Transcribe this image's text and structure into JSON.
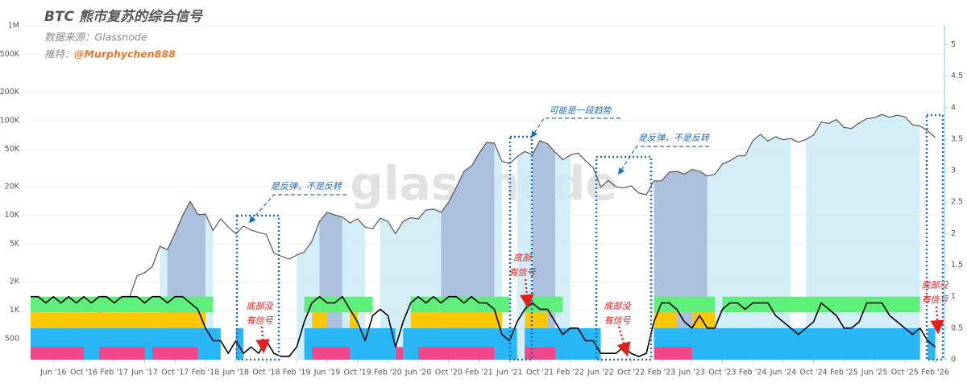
{
  "chart_data": {
    "type": "line",
    "title": "BTC 熊市复苏的综合信号",
    "source": "数据来源：Glassnode",
    "twitter_label": "推特：",
    "twitter_handle": "@Murphychen888",
    "watermark": "glassnode",
    "xlim": [
      "2016-03",
      "2026-03"
    ],
    "xticks": [
      {
        "value": "2016-06",
        "label": "Jun '16"
      },
      {
        "value": "2016-10",
        "label": "Oct '16"
      },
      {
        "value": "2017-02",
        "label": "Feb '17"
      },
      {
        "value": "2017-06",
        "label": "Jun '17"
      },
      {
        "value": "2017-10",
        "label": "Oct '17"
      },
      {
        "value": "2018-02",
        "label": "Feb '18"
      },
      {
        "value": "2018-06",
        "label": "Jun '18"
      },
      {
        "value": "2018-10",
        "label": "Oct '18"
      },
      {
        "value": "2019-02",
        "label": "Feb '19"
      },
      {
        "value": "2019-06",
        "label": "Jun '19"
      },
      {
        "value": "2019-10",
        "label": "Oct '19"
      },
      {
        "value": "2020-02",
        "label": "Feb '20"
      },
      {
        "value": "2020-06",
        "label": "Jun '20"
      },
      {
        "value": "2020-10",
        "label": "Oct '20"
      },
      {
        "value": "2021-02",
        "label": "Feb '21"
      },
      {
        "value": "2021-06",
        "label": "Jun '21"
      },
      {
        "value": "2021-10",
        "label": "Oct '21"
      },
      {
        "value": "2022-02",
        "label": "Feb '22"
      },
      {
        "value": "2022-06",
        "label": "Jun '22"
      },
      {
        "value": "2022-10",
        "label": "Oct '22"
      },
      {
        "value": "2023-02",
        "label": "Feb '23"
      },
      {
        "value": "2023-06",
        "label": "Jun '23"
      },
      {
        "value": "2023-10",
        "label": "Oct '23"
      },
      {
        "value": "2024-02",
        "label": "Feb '24"
      },
      {
        "value": "2024-06",
        "label": "Jun '24"
      },
      {
        "value": "2024-10",
        "label": "Oct '24"
      },
      {
        "value": "2025-02",
        "label": "Feb '25"
      },
      {
        "value": "2025-06",
        "label": "Jun '25"
      },
      {
        "value": "2025-10",
        "label": "Oct '25"
      },
      {
        "value": "2026-02",
        "label": "Feb '26"
      }
    ],
    "ylim": [
      300,
      1000000
    ],
    "log_scale": true,
    "yticks": [
      {
        "value": 1000000,
        "label": "1M"
      },
      {
        "value": 500000,
        "label": "500K"
      },
      {
        "value": 200000,
        "label": "200K"
      },
      {
        "value": 100000,
        "label": "100K"
      },
      {
        "value": 50000,
        "label": "50K"
      },
      {
        "value": 20000,
        "label": "20K"
      },
      {
        "value": 10000,
        "label": "10K"
      },
      {
        "value": 5000,
        "label": "5K"
      },
      {
        "value": 2000,
        "label": "2K"
      },
      {
        "value": 1000,
        "label": "1K"
      },
      500
    ],
    "y2lim": [
      0,
      5.3
    ],
    "y2ticks": [
      0,
      0.5,
      1,
      1.5,
      2,
      2.5,
      3,
      3.5,
      4,
      4.5,
      5
    ],
    "grid": true,
    "x": [
      "2016-03",
      "2016-04",
      "2016-05",
      "2016-06",
      "2016-07",
      "2016-08",
      "2016-09",
      "2016-10",
      "2016-11",
      "2016-12",
      "2017-01",
      "2017-02",
      "2017-03",
      "2017-04",
      "2017-05",
      "2017-06",
      "2017-07",
      "2017-08",
      "2017-09",
      "2017-10",
      "2017-11",
      "2017-12",
      "2018-01",
      "2018-02",
      "2018-03",
      "2018-04",
      "2018-05",
      "2018-06",
      "2018-07",
      "2018-08",
      "2018-09",
      "2018-10",
      "2018-11",
      "2018-12",
      "2019-01",
      "2019-02",
      "2019-03",
      "2019-04",
      "2019-05",
      "2019-06",
      "2019-07",
      "2019-08",
      "2019-09",
      "2019-10",
      "2019-11",
      "2019-12",
      "2020-01",
      "2020-02",
      "2020-03",
      "2020-04",
      "2020-05",
      "2020-06",
      "2020-07",
      "2020-08",
      "2020-09",
      "2020-10",
      "2020-11",
      "2020-12",
      "2021-01",
      "2021-02",
      "2021-03",
      "2021-04",
      "2021-05",
      "2021-06",
      "2021-07",
      "2021-08",
      "2021-09",
      "2021-10",
      "2021-11",
      "2021-12",
      "2022-01",
      "2022-02",
      "2022-03",
      "2022-04",
      "2022-05",
      "2022-06",
      "2022-07",
      "2022-08",
      "2022-09",
      "2022-10",
      "2022-11",
      "2022-12",
      "2023-01",
      "2023-02",
      "2023-03",
      "2023-04",
      "2023-05",
      "2023-06",
      "2023-07",
      "2023-08",
      "2023-09",
      "2023-10",
      "2023-11",
      "2023-12",
      "2024-01",
      "2024-02",
      "2024-03",
      "2024-04",
      "2024-05",
      "2024-06",
      "2024-07",
      "2024-08",
      "2024-09",
      "2024-10",
      "2024-11",
      "2024-12",
      "2025-01",
      "2025-02",
      "2025-03",
      "2025-04",
      "2025-05",
      "2025-06",
      "2025-07",
      "2025-08",
      "2025-09",
      "2025-10",
      "2025-11",
      "2025-12",
      "2026-01",
      "2026-02"
    ],
    "series": [
      {
        "color": "#555555",
        "values": [
          415,
          450,
          530,
          670,
          620,
          575,
          610,
          700,
          740,
          960,
          970,
          1190,
          1080,
          1350,
          2300,
          2480,
          2870,
          4700,
          4340,
          6450,
          10000,
          14000,
          10200,
          10300,
          6900,
          9200,
          7500,
          6400,
          7700,
          7000,
          6600,
          6300,
          4000,
          3700,
          3450,
          3800,
          4100,
          5300,
          8600,
          10800,
          10100,
          9600,
          8300,
          9200,
          7500,
          7200,
          9350,
          8600,
          6400,
          8600,
          9450,
          9140,
          11350,
          11650,
          10780,
          13800,
          19700,
          29000,
          33100,
          45200,
          58800,
          57700,
          37300,
          35000,
          41500,
          47100,
          43800,
          61300,
          57000,
          46300,
          38500,
          43200,
          45500,
          37700,
          31800,
          19800,
          23300,
          20000,
          19400,
          20500,
          17200,
          16500,
          23100,
          23100,
          28500,
          29200,
          27200,
          30500,
          29200,
          26000,
          27000,
          34600,
          37700,
          42300,
          42600,
          61200,
          71300,
          60600,
          67500,
          62700,
          64600,
          59000,
          63300,
          70200,
          96400,
          93400,
          102400,
          84300,
          82500,
          94200,
          104600,
          107100,
          115700,
          108200,
          114000,
          109500,
          90400,
          87500,
          78000,
          66000
        ]
      },
      {
        "color": "#000000",
        "axis": "y2",
        "values": [
          1,
          1,
          0.9,
          1,
          0.9,
          1,
          0.9,
          1,
          0.9,
          1,
          1,
          0.9,
          1,
          1,
          1,
          0.9,
          1,
          1,
          0.9,
          1,
          1,
          0.9,
          0.8,
          0.5,
          0.3,
          0.3,
          0.1,
          0.3,
          0.1,
          0.2,
          0.1,
          0.3,
          0.1,
          0.05,
          0.05,
          0.2,
          0.6,
          0.9,
          1,
          0.9,
          0.9,
          1,
          0.8,
          0.6,
          0.3,
          0.7,
          0.8,
          0.7,
          0.2,
          0.6,
          0.9,
          1,
          0.9,
          1,
          0.9,
          1,
          1,
          0.9,
          1,
          0.9,
          0.9,
          0.8,
          0.4,
          0.3,
          0.6,
          0.8,
          0.9,
          0.8,
          0.8,
          0.6,
          0.4,
          0.5,
          0.5,
          0.3,
          0.3,
          0.1,
          0.1,
          0.1,
          0.2,
          0.1,
          0.05,
          0.1,
          0.6,
          0.9,
          0.9,
          0.8,
          0.6,
          0.5,
          0.7,
          0.5,
          0.5,
          0.8,
          0.9,
          0.9,
          0.8,
          0.9,
          0.9,
          0.9,
          0.7,
          0.6,
          0.5,
          0.4,
          0.5,
          0.6,
          0.9,
          0.8,
          0.7,
          0.5,
          0.5,
          0.6,
          0.9,
          0.9,
          0.9,
          0.7,
          0.6,
          0.5,
          0.4,
          0.5,
          0.3,
          0.2
        ]
      }
    ],
    "shading": [
      {
        "color": "#cdebf6",
        "spans": [
          [
            "2017-08",
            "2018-03"
          ],
          [
            "2019-02",
            "2019-11"
          ],
          [
            "2020-01",
            "2021-05"
          ],
          [
            "2021-07",
            "2022-02"
          ],
          [
            "2023-01",
            "2024-07"
          ],
          [
            "2024-09",
            "2025-12"
          ]
        ]
      },
      {
        "color": "#9aaed3",
        "spans": [
          [
            "2017-09",
            "2018-02"
          ],
          [
            "2019-05",
            "2019-08"
          ],
          [
            "2020-09",
            "2021-04"
          ],
          [
            "2021-09",
            "2021-12"
          ],
          [
            "2023-01",
            "2023-08"
          ]
        ]
      }
    ],
    "bands": [
      {
        "color": "#5ef07a",
        "y2range": [
          0.75,
          1
        ],
        "spans": [
          [
            "2016-03",
            "2018-03"
          ],
          [
            "2019-03",
            "2019-12"
          ],
          [
            "2020-05",
            "2021-06"
          ],
          [
            "2021-08",
            "2022-01"
          ],
          [
            "2023-01",
            "2023-09"
          ],
          [
            "2023-10",
            "2025-12"
          ]
        ]
      },
      {
        "color": "#ffc800",
        "y2range": [
          0.5,
          0.75
        ],
        "spans": [
          [
            "2016-03",
            "2018-02"
          ],
          [
            "2019-04",
            "2019-06"
          ],
          [
            "2019-09",
            "2019-10"
          ],
          [
            "2020-05",
            "2021-05"
          ],
          [
            "2021-08",
            "2021-11"
          ],
          [
            "2023-01",
            "2023-04"
          ],
          [
            "2023-06",
            "2023-09"
          ]
        ]
      },
      {
        "color": "#29b6f6",
        "y2range": [
          0,
          0.5
        ],
        "spans": [
          [
            "2016-03",
            "2018-04"
          ],
          [
            "2018-06",
            "2018-07"
          ],
          [
            "2019-03",
            "2020-03"
          ],
          [
            "2020-04",
            "2021-07"
          ],
          [
            "2021-08",
            "2022-06"
          ],
          [
            "2023-01",
            "2025-12"
          ],
          [
            "2026-01",
            "2026-02"
          ]
        ]
      },
      {
        "color": "#f0468c",
        "y2range": [
          0,
          0.2
        ],
        "spans": [
          [
            "2016-03",
            "2016-10"
          ],
          [
            "2016-12",
            "2017-06"
          ],
          [
            "2017-07",
            "2018-01"
          ],
          [
            "2019-04",
            "2019-09"
          ],
          [
            "2020-03",
            "2020-04"
          ],
          [
            "2020-06",
            "2021-04"
          ],
          [
            "2021-08",
            "2021-12"
          ],
          [
            "2023-01",
            "2023-06"
          ]
        ]
      }
    ],
    "annotations": [
      {
        "text": "是反弹，不是反转",
        "color": "#1f6fb5"
      },
      {
        "text": "可能是一段趋势",
        "color": "#1f6fb5"
      },
      {
        "text": "是反弹，不是反转",
        "color": "#1f6fb5"
      },
      {
        "lines": [
          "底部没",
          "有信号"
        ],
        "color": "#e0201c"
      },
      {
        "lines": [
          "底部",
          "有信号"
        ],
        "color": "#e0201c"
      },
      {
        "lines": [
          "底部没",
          "有信号"
        ],
        "color": "#e0201c"
      },
      {
        "lines": [
          "底部没",
          "有信号"
        ],
        "color": "#e0201c"
      }
    ]
  }
}
